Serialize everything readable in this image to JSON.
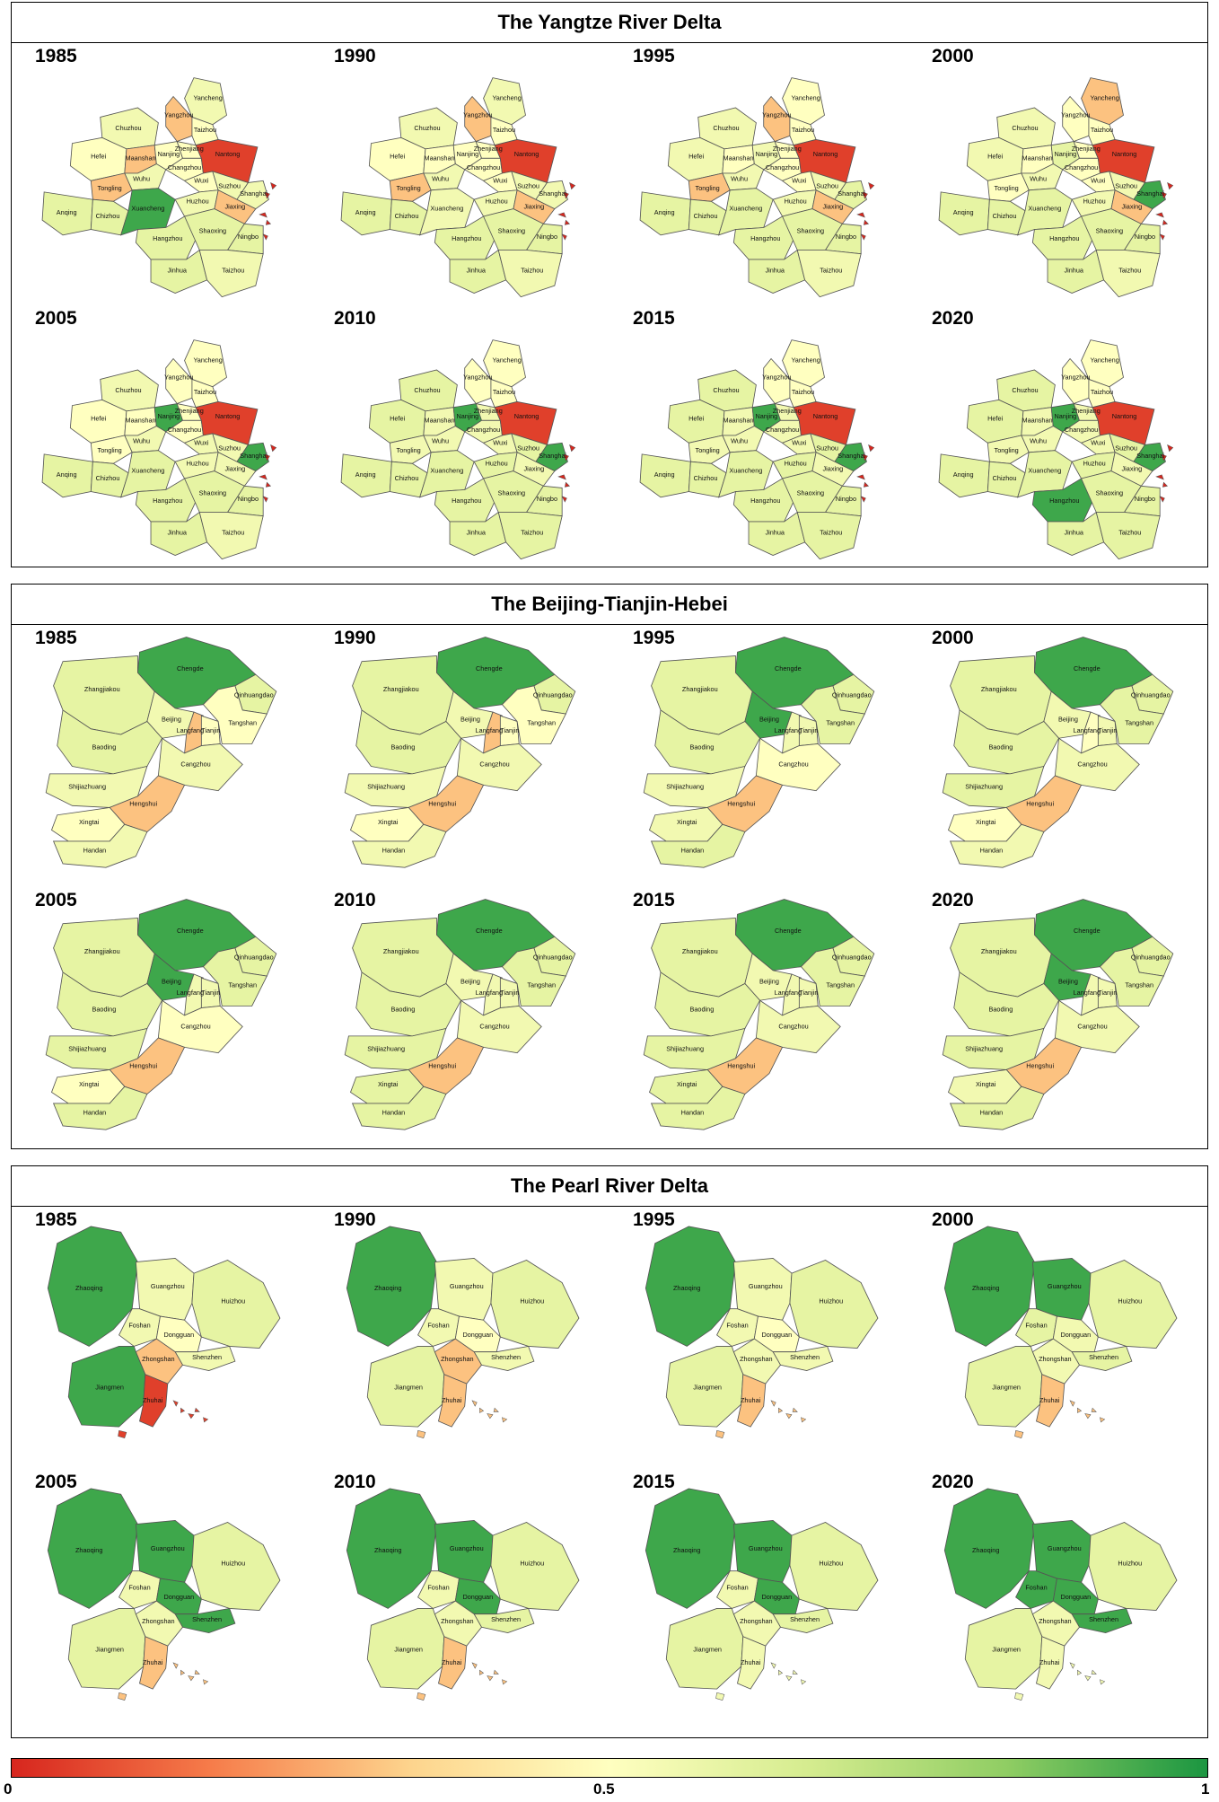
{
  "panels": [
    {
      "title": "The Yangtze River Delta",
      "key": "yrd",
      "years": [
        "1985",
        "1990",
        "1995",
        "2000",
        "2005",
        "2010",
        "2015",
        "2020"
      ]
    },
    {
      "title": "The Beijing-Tianjin-Hebei",
      "key": "bth",
      "years": [
        "1985",
        "1990",
        "1995",
        "2000",
        "2005",
        "2010",
        "2015",
        "2020"
      ]
    },
    {
      "title": "The Pearl River Delta",
      "key": "prd",
      "years": [
        "1985",
        "1990",
        "1995",
        "2000",
        "2005",
        "2010",
        "2015",
        "2020"
      ]
    }
  ],
  "cities": {
    "yrd": [
      "Yancheng",
      "Yangzhou",
      "Taizhou",
      "Chuzhou",
      "Hefei",
      "Maanshan",
      "Nanjing",
      "Zhenjiang",
      "Changzhou",
      "Nantong",
      "Wuhu",
      "Tongling",
      "Anqing",
      "Chizhou",
      "Xuancheng",
      "Wuxi",
      "Suzhou",
      "Shanghai",
      "Huzhou",
      "Jiaxing",
      "Hangzhou",
      "Shaoxing",
      "Ningbo",
      "Jinhua",
      "Taizhou"
    ],
    "bth": [
      "Chengde",
      "Zhangjiakou",
      "Beijing",
      "Qinhuangdao",
      "Langfang",
      "Tianjin",
      "Tangshan",
      "Baoding",
      "Cangzhou",
      "Shijiazhuang",
      "Hengshui",
      "Xingtai",
      "Handan"
    ],
    "prd": [
      "Zhaoqing",
      "Guangzhou",
      "Huizhou",
      "Foshan",
      "Dongguan",
      "Shenzhen",
      "Zhongshan",
      "Jiangmen",
      "Zhuhai"
    ]
  },
  "values": {
    "yrd": {
      "1985": [
        0.55,
        0.3,
        0.5,
        0.55,
        0.5,
        0.3,
        0.5,
        0.5,
        0.5,
        0.05,
        0.55,
        0.3,
        0.6,
        0.6,
        0.95,
        0.5,
        0.55,
        0.55,
        0.55,
        0.3,
        0.6,
        0.6,
        0.6,
        0.6,
        0.55
      ],
      "1990": [
        0.55,
        0.3,
        0.5,
        0.55,
        0.5,
        0.5,
        0.5,
        0.5,
        0.5,
        0.05,
        0.55,
        0.3,
        0.6,
        0.6,
        0.55,
        0.5,
        0.55,
        0.55,
        0.55,
        0.3,
        0.6,
        0.6,
        0.6,
        0.6,
        0.55
      ],
      "1995": [
        0.5,
        0.3,
        0.5,
        0.55,
        0.55,
        0.5,
        0.55,
        0.5,
        0.5,
        0.05,
        0.55,
        0.3,
        0.6,
        0.6,
        0.6,
        0.5,
        0.55,
        0.6,
        0.55,
        0.3,
        0.6,
        0.6,
        0.6,
        0.6,
        0.55
      ],
      "2000": [
        0.3,
        0.5,
        0.5,
        0.55,
        0.55,
        0.5,
        0.6,
        0.5,
        0.5,
        0.05,
        0.55,
        0.5,
        0.6,
        0.6,
        0.6,
        0.5,
        0.55,
        0.95,
        0.55,
        0.3,
        0.6,
        0.6,
        0.6,
        0.6,
        0.55
      ],
      "2005": [
        0.5,
        0.5,
        0.5,
        0.55,
        0.5,
        0.5,
        0.95,
        0.5,
        0.5,
        0.05,
        0.55,
        0.5,
        0.6,
        0.6,
        0.6,
        0.55,
        0.55,
        0.95,
        0.55,
        0.55,
        0.6,
        0.6,
        0.6,
        0.6,
        0.55
      ],
      "2010": [
        0.5,
        0.5,
        0.5,
        0.6,
        0.6,
        0.55,
        0.95,
        0.55,
        0.55,
        0.05,
        0.55,
        0.55,
        0.6,
        0.6,
        0.6,
        0.55,
        0.6,
        0.95,
        0.6,
        0.55,
        0.6,
        0.6,
        0.6,
        0.6,
        0.6
      ],
      "2015": [
        0.5,
        0.5,
        0.5,
        0.6,
        0.6,
        0.55,
        0.95,
        0.55,
        0.55,
        0.05,
        0.55,
        0.55,
        0.6,
        0.6,
        0.6,
        0.55,
        0.6,
        0.95,
        0.6,
        0.55,
        0.6,
        0.6,
        0.6,
        0.6,
        0.6
      ],
      "2020": [
        0.5,
        0.5,
        0.5,
        0.6,
        0.6,
        0.55,
        0.95,
        0.55,
        0.55,
        0.05,
        0.55,
        0.55,
        0.6,
        0.6,
        0.6,
        0.55,
        0.6,
        0.95,
        0.6,
        0.55,
        0.95,
        0.6,
        0.6,
        0.6,
        0.6
      ]
    },
    "bth": {
      "1985": [
        0.95,
        0.6,
        0.55,
        0.6,
        0.3,
        0.5,
        0.5,
        0.6,
        0.55,
        0.55,
        0.3,
        0.5,
        0.55
      ],
      "1990": [
        0.95,
        0.6,
        0.55,
        0.6,
        0.3,
        0.5,
        0.5,
        0.6,
        0.55,
        0.55,
        0.3,
        0.5,
        0.55
      ],
      "1995": [
        0.95,
        0.6,
        0.95,
        0.6,
        0.55,
        0.55,
        0.6,
        0.6,
        0.5,
        0.55,
        0.3,
        0.55,
        0.6
      ],
      "2000": [
        0.95,
        0.6,
        0.55,
        0.6,
        0.5,
        0.55,
        0.6,
        0.6,
        0.55,
        0.6,
        0.3,
        0.5,
        0.55
      ],
      "2005": [
        0.95,
        0.6,
        0.95,
        0.6,
        0.55,
        0.55,
        0.6,
        0.6,
        0.5,
        0.6,
        0.3,
        0.5,
        0.6
      ],
      "2010": [
        0.95,
        0.6,
        0.55,
        0.6,
        0.55,
        0.55,
        0.6,
        0.6,
        0.55,
        0.6,
        0.3,
        0.6,
        0.6
      ],
      "2015": [
        0.95,
        0.6,
        0.55,
        0.6,
        0.55,
        0.55,
        0.6,
        0.6,
        0.55,
        0.6,
        0.3,
        0.6,
        0.6
      ],
      "2020": [
        0.95,
        0.6,
        0.95,
        0.6,
        0.55,
        0.55,
        0.6,
        0.6,
        0.55,
        0.6,
        0.3,
        0.55,
        0.6
      ]
    },
    "prd": {
      "1985": [
        0.95,
        0.55,
        0.6,
        0.55,
        0.5,
        0.55,
        0.3,
        0.95,
        0.05
      ],
      "1990": [
        0.95,
        0.55,
        0.6,
        0.55,
        0.5,
        0.55,
        0.3,
        0.6,
        0.3
      ],
      "1995": [
        0.95,
        0.55,
        0.6,
        0.55,
        0.5,
        0.55,
        0.55,
        0.6,
        0.3
      ],
      "2000": [
        0.95,
        0.95,
        0.6,
        0.6,
        0.55,
        0.6,
        0.55,
        0.6,
        0.3
      ],
      "2005": [
        0.95,
        0.95,
        0.6,
        0.55,
        0.95,
        0.95,
        0.55,
        0.6,
        0.3
      ],
      "2010": [
        0.95,
        0.95,
        0.6,
        0.55,
        0.95,
        0.6,
        0.55,
        0.6,
        0.3
      ],
      "2015": [
        0.95,
        0.95,
        0.6,
        0.55,
        0.95,
        0.6,
        0.55,
        0.6,
        0.55
      ],
      "2020": [
        0.95,
        0.95,
        0.6,
        0.95,
        0.95,
        0.95,
        0.55,
        0.6,
        0.55
      ]
    }
  },
  "colorbar": {
    "min_label": "0",
    "mid_label": "0.5",
    "max_label": "1",
    "stops": [
      "#d7261e",
      "#f67c4a",
      "#fdd48d",
      "#ffffc0",
      "#d5ec8f",
      "#8fcd63",
      "#1b9641"
    ]
  }
}
